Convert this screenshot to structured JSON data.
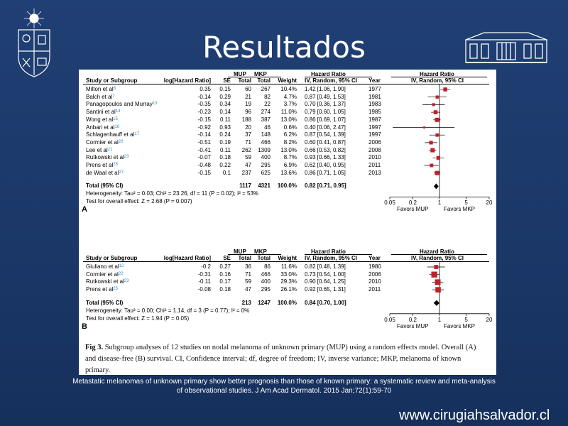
{
  "slide": {
    "title": "Resultados",
    "reference_line1": "Metastatic melanomas of unknown primary show better prognosis than those of known primary: a systematic review and meta-analysis",
    "reference_line2": "of observational studies. J Am Acad Dermatol. 2015 Jan;72(1):59-70",
    "website": "www.cirugiahsalvador.cl"
  },
  "colors": {
    "background": "#1b3a6e",
    "marker": "#c0202a",
    "link": "#2a8fd0"
  },
  "headers": {
    "group_mup": "MUP",
    "group_mkp": "MKP",
    "group_hr": "Hazard Ratio",
    "group_hr_plot": "Hazard Ratio",
    "study": "Study or Subgroup",
    "loghr": "log[Hazard Ratio]",
    "se": "SE",
    "total_mup": "Total",
    "total_mkp": "Total",
    "weight": "Weight",
    "hr_method": "IV, Random, 95% CI",
    "year": "Year",
    "plot_method": "IV, Random, 95% CI"
  },
  "panel_a": {
    "label": "A",
    "studies": [
      {
        "name": "Milton et al",
        "ref": "6",
        "loghr": "0.35",
        "se": "0.15",
        "mup": "60",
        "mkp": "267",
        "weight": "10.4%",
        "hr": "1.42 [1.06, 1.90]",
        "year": "1977",
        "hr_val": 1.42,
        "lo": 1.06,
        "hi": 1.9,
        "w": 10.4
      },
      {
        "name": "Balch et al",
        "ref": "7",
        "loghr": "-0.14",
        "se": "0.29",
        "mup": "21",
        "mkp": "82",
        "weight": "4.7%",
        "hr": "0.87 [0.49, 1.53]",
        "year": "1981",
        "hr_val": 0.87,
        "lo": 0.49,
        "hi": 1.53,
        "w": 4.7
      },
      {
        "name": "Panagopoulos and Murray",
        "ref": "13",
        "loghr": "-0.35",
        "se": "0.34",
        "mup": "19",
        "mkp": "22",
        "weight": "3.7%",
        "hr": "0.70 [0.36, 1.37]",
        "year": "1983",
        "hr_val": 0.7,
        "lo": 0.36,
        "hi": 1.37,
        "w": 3.7
      },
      {
        "name": "Santini et al",
        "ref": "14",
        "loghr": "-0.23",
        "se": "0.14",
        "mup": "96",
        "mkp": "274",
        "weight": "11.0%",
        "hr": "0.79 [0.60, 1.05]",
        "year": "1985",
        "hr_val": 0.79,
        "lo": 0.6,
        "hi": 1.05,
        "w": 11.0
      },
      {
        "name": "Wong et al",
        "ref": "15",
        "loghr": "-0.15",
        "se": "0.11",
        "mup": "188",
        "mkp": "387",
        "weight": "13.0%",
        "hr": "0.86 [0.69, 1.07]",
        "year": "1987",
        "hr_val": 0.86,
        "lo": 0.69,
        "hi": 1.07,
        "w": 13.0
      },
      {
        "name": "Anbari et al",
        "ref": "16",
        "loghr": "-0.92",
        "se": "0.93",
        "mup": "20",
        "mkp": "46",
        "weight": "0.6%",
        "hr": "0.40 [0.06, 2.47]",
        "year": "1997",
        "hr_val": 0.4,
        "lo": 0.06,
        "hi": 2.47,
        "w": 0.6
      },
      {
        "name": "Schlagenhauff et al",
        "ref": "17",
        "loghr": "-0.14",
        "se": "0.24",
        "mup": "37",
        "mkp": "148",
        "weight": "6.2%",
        "hr": "0.87 [0.54, 1.39]",
        "year": "1997",
        "hr_val": 0.87,
        "lo": 0.54,
        "hi": 1.39,
        "w": 6.2
      },
      {
        "name": "Cormier et al",
        "ref": "20",
        "loghr": "-0.51",
        "se": "0.19",
        "mup": "71",
        "mkp": "466",
        "weight": "8.2%",
        "hr": "0.60 [0.41, 0.87]",
        "year": "2006",
        "hr_val": 0.6,
        "lo": 0.41,
        "hi": 0.87,
        "w": 8.2
      },
      {
        "name": "Lee et al",
        "ref": "21",
        "loghr": "-0.41",
        "se": "0.11",
        "mup": "262",
        "mkp": "1309",
        "weight": "13.0%",
        "hr": "0.66 [0.53, 0.82]",
        "year": "2008",
        "hr_val": 0.66,
        "lo": 0.53,
        "hi": 0.82,
        "w": 13.0
      },
      {
        "name": "Rutkowski et al",
        "ref": "23",
        "loghr": "-0.07",
        "se": "0.18",
        "mup": "59",
        "mkp": "400",
        "weight": "8.7%",
        "hr": "0.93 [0.66, 1.33]",
        "year": "2010",
        "hr_val": 0.93,
        "lo": 0.66,
        "hi": 1.33,
        "w": 8.7
      },
      {
        "name": "Prens et al",
        "ref": "25",
        "loghr": "-0.48",
        "se": "0.22",
        "mup": "47",
        "mkp": "295",
        "weight": "6.9%",
        "hr": "0.62 [0.40, 0.95]",
        "year": "2011",
        "hr_val": 0.62,
        "lo": 0.4,
        "hi": 0.95,
        "w": 6.9
      },
      {
        "name": "de Waal et al",
        "ref": "27",
        "loghr": "-0.15",
        "se": "0.1",
        "mup": "237",
        "mkp": "625",
        "weight": "13.6%",
        "hr": "0.86 [0.71, 1.05]",
        "year": "2013",
        "hr_val": 0.86,
        "lo": 0.71,
        "hi": 1.05,
        "w": 13.6
      }
    ],
    "total": {
      "label": "Total (95% CI)",
      "mup": "1117",
      "mkp": "4321",
      "weight": "100.0%",
      "hr": "0.82 [0.71, 0.95]",
      "hr_val": 0.82,
      "lo": 0.71,
      "hi": 0.95
    },
    "heterogeneity": "Heterogeneity: Tau² = 0.03; Chi² = 23.26, df = 11 (P = 0.02); I² = 53%",
    "overall": "Test for overall effect: Z = 2.68 (P = 0.007)",
    "axis_ticks": [
      "0.05",
      "0.2",
      "1",
      "5",
      "20"
    ],
    "favors_left": "Favors MUP",
    "favors_right": "Favors MKP"
  },
  "panel_b": {
    "label": "B",
    "studies": [
      {
        "name": "Giuliano et al",
        "ref": "12",
        "loghr": "-0.2",
        "se": "0.27",
        "mup": "36",
        "mkp": "86",
        "weight": "11.6%",
        "hr": "0.82 [0.48, 1.39]",
        "year": "1980",
        "hr_val": 0.82,
        "lo": 0.48,
        "hi": 1.39,
        "w": 11.6
      },
      {
        "name": "Cormier et al",
        "ref": "20",
        "loghr": "-0.31",
        "se": "0.16",
        "mup": "71",
        "mkp": "466",
        "weight": "33.0%",
        "hr": "0.73 [0.54, 1.00]",
        "year": "2006",
        "hr_val": 0.73,
        "lo": 0.54,
        "hi": 1.0,
        "w": 33.0
      },
      {
        "name": "Rutkowski et al",
        "ref": "23",
        "loghr": "-0.11",
        "se": "0.17",
        "mup": "59",
        "mkp": "400",
        "weight": "29.3%",
        "hr": "0.90 [0.64, 1.25]",
        "year": "2010",
        "hr_val": 0.9,
        "lo": 0.64,
        "hi": 1.25,
        "w": 29.3
      },
      {
        "name": "Prens et al",
        "ref": "25",
        "loghr": "-0.08",
        "se": "0.18",
        "mup": "47",
        "mkp": "295",
        "weight": "26.1%",
        "hr": "0.92 [0.65, 1.31]",
        "year": "2011",
        "hr_val": 0.92,
        "lo": 0.65,
        "hi": 1.31,
        "w": 26.1
      }
    ],
    "total": {
      "label": "Total (95% CI)",
      "mup": "213",
      "mkp": "1247",
      "weight": "100.0%",
      "hr": "0.84 [0.70, 1.00]",
      "hr_val": 0.84,
      "lo": 0.7,
      "hi": 1.0
    },
    "heterogeneity": "Heterogeneity: Tau² = 0.00; Chi² = 1.14, df = 3 (P = 0.77); I² = 0%",
    "overall": "Test for overall effect: Z = 1.94 (P = 0.05)",
    "axis_ticks": [
      "0.05",
      "0.2",
      "1",
      "5",
      "20"
    ],
    "favors_left": "Favors MUP",
    "favors_right": "Favors MKP"
  },
  "caption": {
    "fig_label": "Fig 3.",
    "text": " Subgroup analyses of 12 studies on nodal melanoma of unknown primary (MUP) using a random effects model. Overall (A) and disease-free (B) survival. CI, Confidence interval; df, degree of freedom; IV, inverse variance; MKP, melanoma of known primary."
  }
}
